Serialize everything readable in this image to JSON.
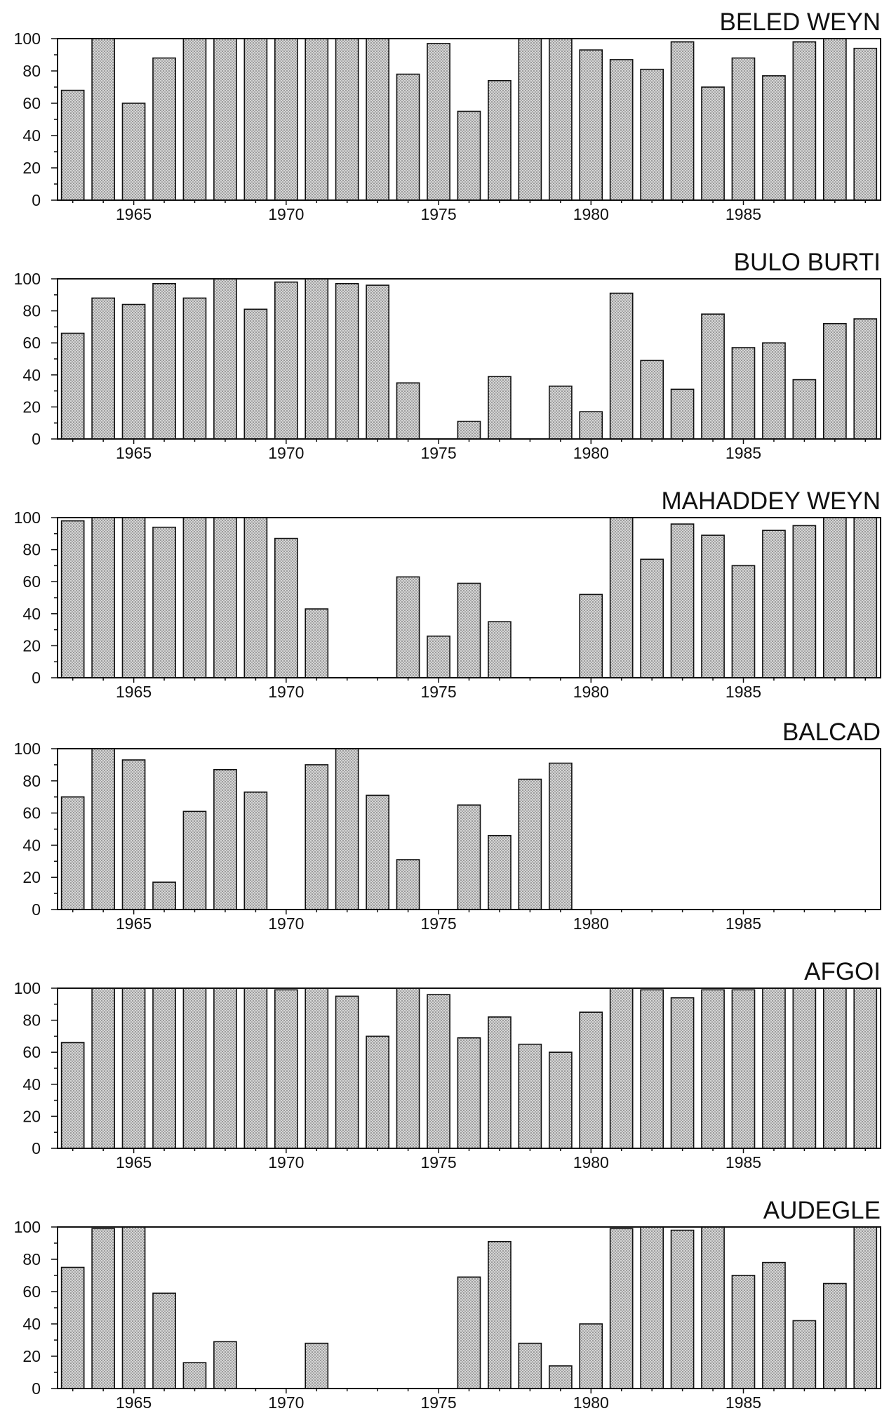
{
  "chart_data": [
    {
      "type": "bar",
      "title": "BELED WEYN",
      "x": [
        1963,
        1964,
        1965,
        1966,
        1967,
        1968,
        1969,
        1970,
        1971,
        1972,
        1973,
        1974,
        1975,
        1976,
        1977,
        1978,
        1979,
        1980,
        1981,
        1982,
        1983,
        1984,
        1985,
        1986,
        1987,
        1988,
        1989
      ],
      "values": [
        68,
        100,
        60,
        88,
        100,
        100,
        100,
        100,
        100,
        100,
        100,
        78,
        97,
        55,
        74,
        100,
        100,
        93,
        87,
        81,
        98,
        70,
        88,
        77,
        98,
        100,
        94
      ],
      "xticks": [
        1965,
        1970,
        1975,
        1980,
        1985
      ],
      "yticks": [
        0,
        20,
        40,
        60,
        80,
        100
      ],
      "ylim": [
        0,
        100
      ],
      "xlim": [
        1962.5,
        1989.5
      ],
      "grid": false
    },
    {
      "type": "bar",
      "title": "BULO BURTI",
      "x": [
        1963,
        1964,
        1965,
        1966,
        1967,
        1968,
        1969,
        1970,
        1971,
        1972,
        1973,
        1974,
        1975,
        1976,
        1977,
        1978,
        1979,
        1980,
        1981,
        1982,
        1983,
        1984,
        1985,
        1986,
        1987,
        1988,
        1989
      ],
      "values": [
        66,
        88,
        84,
        97,
        88,
        100,
        81,
        98,
        100,
        97,
        96,
        35,
        0,
        11,
        39,
        0,
        33,
        17,
        91,
        49,
        31,
        78,
        57,
        60,
        37,
        72,
        75
      ],
      "xticks": [
        1965,
        1970,
        1975,
        1980,
        1985
      ],
      "yticks": [
        0,
        20,
        40,
        60,
        80,
        100
      ],
      "ylim": [
        0,
        100
      ],
      "xlim": [
        1962.5,
        1989.5
      ],
      "grid": false
    },
    {
      "type": "bar",
      "title": "MAHADDEY WEYN",
      "x": [
        1963,
        1964,
        1965,
        1966,
        1967,
        1968,
        1969,
        1970,
        1971,
        1972,
        1973,
        1974,
        1975,
        1976,
        1977,
        1978,
        1979,
        1980,
        1981,
        1982,
        1983,
        1984,
        1985,
        1986,
        1987,
        1988,
        1989
      ],
      "values": [
        98,
        100,
        100,
        94,
        100,
        100,
        100,
        87,
        43,
        0,
        0,
        63,
        26,
        59,
        35,
        0,
        0,
        52,
        100,
        74,
        96,
        89,
        70,
        92,
        95,
        100,
        100
      ],
      "xticks": [
        1965,
        1970,
        1975,
        1980,
        1985
      ],
      "yticks": [
        0,
        20,
        40,
        60,
        80,
        100
      ],
      "ylim": [
        0,
        100
      ],
      "xlim": [
        1962.5,
        1989.5
      ],
      "grid": false
    },
    {
      "type": "bar",
      "title": "BALCAD",
      "x": [
        1963,
        1964,
        1965,
        1966,
        1967,
        1968,
        1969,
        1970,
        1971,
        1972,
        1973,
        1974,
        1975,
        1976,
        1977,
        1978,
        1979,
        1980,
        1981,
        1982,
        1983,
        1984,
        1985,
        1986,
        1987,
        1988,
        1989
      ],
      "values": [
        70,
        100,
        93,
        17,
        61,
        87,
        73,
        0,
        90,
        100,
        71,
        31,
        0,
        65,
        46,
        81,
        91,
        0,
        0,
        0,
        0,
        0,
        0,
        0,
        0,
        0,
        0
      ],
      "xticks": [
        1965,
        1970,
        1975,
        1980,
        1985
      ],
      "yticks": [
        0,
        20,
        40,
        60,
        80,
        100
      ],
      "ylim": [
        0,
        100
      ],
      "xlim": [
        1962.5,
        1989.5
      ],
      "grid": false
    },
    {
      "type": "bar",
      "title": "AFGOI",
      "x": [
        1963,
        1964,
        1965,
        1966,
        1967,
        1968,
        1969,
        1970,
        1971,
        1972,
        1973,
        1974,
        1975,
        1976,
        1977,
        1978,
        1979,
        1980,
        1981,
        1982,
        1983,
        1984,
        1985,
        1986,
        1987,
        1988,
        1989
      ],
      "values": [
        66,
        100,
        100,
        100,
        100,
        100,
        100,
        99,
        100,
        95,
        70,
        100,
        96,
        69,
        82,
        65,
        60,
        85,
        100,
        99,
        94,
        99,
        99,
        100,
        100,
        100,
        100
      ],
      "xticks": [
        1965,
        1970,
        1975,
        1980,
        1985
      ],
      "yticks": [
        0,
        20,
        40,
        60,
        80,
        100
      ],
      "ylim": [
        0,
        100
      ],
      "xlim": [
        1962.5,
        1989.5
      ],
      "grid": false
    },
    {
      "type": "bar",
      "title": "AUDEGLE",
      "x": [
        1963,
        1964,
        1965,
        1966,
        1967,
        1968,
        1969,
        1970,
        1971,
        1972,
        1973,
        1974,
        1975,
        1976,
        1977,
        1978,
        1979,
        1980,
        1981,
        1982,
        1983,
        1984,
        1985,
        1986,
        1987,
        1988,
        1989
      ],
      "values": [
        75,
        99,
        100,
        59,
        16,
        29,
        0,
        0,
        28,
        0,
        0,
        0,
        0,
        69,
        91,
        28,
        14,
        40,
        99,
        100,
        98,
        100,
        70,
        78,
        42,
        65,
        100
      ],
      "xticks": [
        1965,
        1970,
        1975,
        1980,
        1985
      ],
      "yticks": [
        0,
        20,
        40,
        60,
        80,
        100
      ],
      "ylim": [
        0,
        100
      ],
      "xlim": [
        1962.5,
        1989.5
      ],
      "grid": false
    }
  ]
}
